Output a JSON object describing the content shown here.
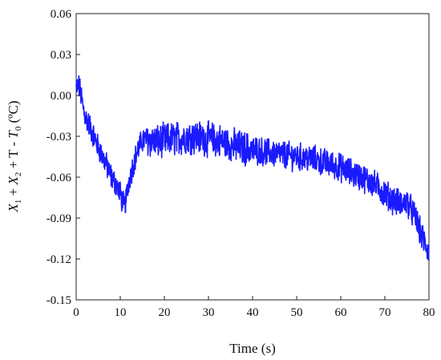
{
  "chart_data": {
    "type": "line",
    "xlabel": "Time (s)",
    "ylabel": "X1 + X2 + T - T0 (ºC)",
    "ylabel_parts": {
      "x": "X",
      "x_sub1": "1",
      "plus1": " + ",
      "x2": "X",
      "x_sub2": "2",
      "plus2": " + T - ",
      "t0": "T",
      "t_sub0": "0",
      "unit": " (ºC)"
    },
    "xlim": [
      0,
      80
    ],
    "ylim": [
      -0.15,
      0.06
    ],
    "xticks": [
      0,
      10,
      20,
      30,
      40,
      50,
      60,
      70,
      80
    ],
    "xtick_labels": [
      "0",
      "10",
      "20",
      "30",
      "40",
      "50",
      "60",
      "70",
      "80"
    ],
    "yticks": [
      0.06,
      0.03,
      0.0,
      -0.03,
      -0.06,
      -0.09,
      -0.12,
      -0.15
    ],
    "ytick_labels": [
      "0.06",
      "0.03",
      "0.00",
      "-0.03",
      "-0.06",
      "-0.09",
      "-0.12",
      "-0.15"
    ],
    "grid": false,
    "series": [
      {
        "color": "#1a1aff",
        "x": [
          0,
          0.5,
          1,
          1.5,
          2,
          3,
          4,
          5,
          6,
          7,
          8,
          9,
          10,
          10.5,
          11,
          11.5,
          12,
          13,
          14,
          15,
          16,
          17,
          18,
          19,
          20,
          22,
          24,
          26,
          28,
          30,
          32,
          34,
          36,
          38,
          40,
          42,
          44,
          46,
          48,
          50,
          52,
          54,
          56,
          58,
          60,
          62,
          64,
          66,
          68,
          70,
          72,
          74,
          75,
          76,
          77,
          78,
          79,
          80
        ],
        "y": [
          0.005,
          0.008,
          0.002,
          -0.008,
          -0.015,
          -0.022,
          -0.03,
          -0.038,
          -0.045,
          -0.052,
          -0.06,
          -0.065,
          -0.072,
          -0.078,
          -0.082,
          -0.072,
          -0.062,
          -0.05,
          -0.04,
          -0.033,
          -0.032,
          -0.033,
          -0.034,
          -0.034,
          -0.033,
          -0.032,
          -0.031,
          -0.03,
          -0.031,
          -0.032,
          -0.033,
          -0.035,
          -0.037,
          -0.039,
          -0.04,
          -0.041,
          -0.042,
          -0.043,
          -0.044,
          -0.045,
          -0.046,
          -0.047,
          -0.049,
          -0.051,
          -0.053,
          -0.056,
          -0.059,
          -0.062,
          -0.066,
          -0.072,
          -0.077,
          -0.08,
          -0.078,
          -0.084,
          -0.09,
          -0.1,
          -0.108,
          -0.115
        ]
      }
    ]
  },
  "colors": {
    "line": "#1a1aff",
    "axis": "#222222",
    "text": "#111111"
  }
}
